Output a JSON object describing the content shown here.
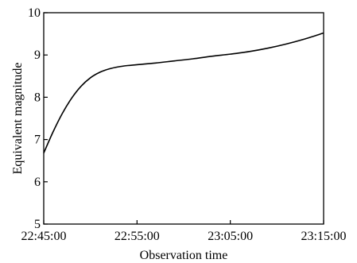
{
  "chart_data": {
    "type": "line",
    "title": "",
    "xlabel": "Observation time",
    "ylabel": "Equivalent magnitude",
    "xlim": [
      "22:45:00",
      "23:15:00"
    ],
    "ylim": [
      5,
      10
    ],
    "x_ticks": [
      "22:45:00",
      "22:55:00",
      "23:05:00",
      "23:15:00"
    ],
    "y_ticks": [
      "5",
      "6",
      "7",
      "8",
      "9",
      "10"
    ],
    "grid": false,
    "legend": "none",
    "series": [
      {
        "name": "",
        "color": "#000000",
        "x": [
          "22:45:00",
          "22:46:00",
          "22:47:00",
          "22:48:00",
          "22:49:00",
          "22:50:00",
          "22:51:00",
          "22:52:00",
          "22:53:00",
          "22:54:00",
          "22:55:00",
          "22:57:00",
          "22:59:00",
          "23:01:00",
          "23:03:00",
          "23:05:00",
          "23:07:00",
          "23:09:00",
          "23:11:00",
          "23:13:00",
          "23:15:00"
        ],
        "y": [
          6.68,
          7.18,
          7.62,
          7.98,
          8.26,
          8.46,
          8.59,
          8.67,
          8.72,
          8.75,
          8.77,
          8.81,
          8.86,
          8.91,
          8.97,
          9.02,
          9.08,
          9.16,
          9.26,
          9.38,
          9.52
        ]
      }
    ]
  }
}
